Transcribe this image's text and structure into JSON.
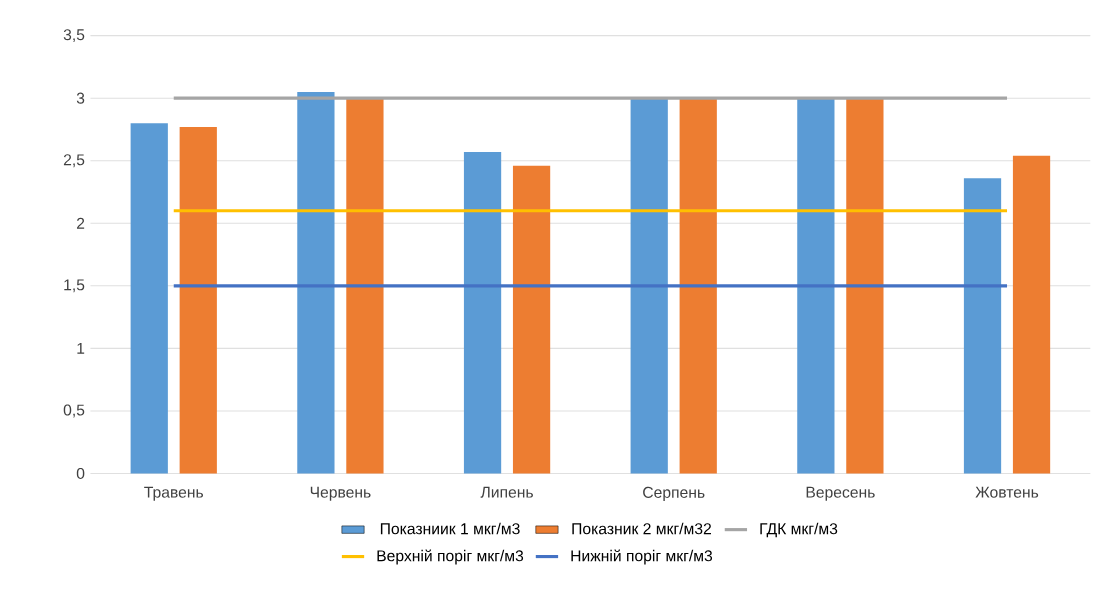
{
  "chart_data": {
    "type": "bar",
    "categories": [
      "Травень",
      "Червень",
      "Липень",
      "Серпень",
      "Вересень",
      "Жовтень"
    ],
    "series": [
      {
        "name": "Показниик 1 мкг/м3",
        "color": "#5b9bd5",
        "values": [
          2.8,
          3.05,
          2.57,
          3.0,
          3.0,
          2.36
        ]
      },
      {
        "name": "Показник 2 мкг/м32",
        "color": "#ed7d31",
        "values": [
          2.77,
          3.0,
          2.46,
          3.0,
          3.0,
          2.54
        ]
      },
      {
        "name": "ГДК мкг/м3",
        "type": "line",
        "color": "#a5a5a5",
        "values": [
          3,
          3,
          3,
          3,
          3,
          3
        ]
      },
      {
        "name": "Верхній поріг мкг/м3",
        "type": "line",
        "color": "#ffc000",
        "values": [
          2.1,
          2.1,
          2.1,
          2.1,
          2.1,
          2.1
        ]
      },
      {
        "name": "Нижній поріг мкг/м3",
        "type": "line",
        "color": "#4472c4",
        "values": [
          1.5,
          1.5,
          1.5,
          1.5,
          1.5,
          1.5
        ]
      }
    ],
    "ylim": [
      0,
      3.5
    ],
    "yticks": [
      0,
      {
        "value": 0.5,
        "label": "0,5"
      },
      1,
      {
        "value": 1.5,
        "label": "1,5"
      },
      2,
      {
        "value": 2.5,
        "label": "2,5"
      },
      3,
      {
        "value": 3.5,
        "label": "3,5"
      }
    ],
    "grid": "y",
    "legend": "bottom"
  }
}
